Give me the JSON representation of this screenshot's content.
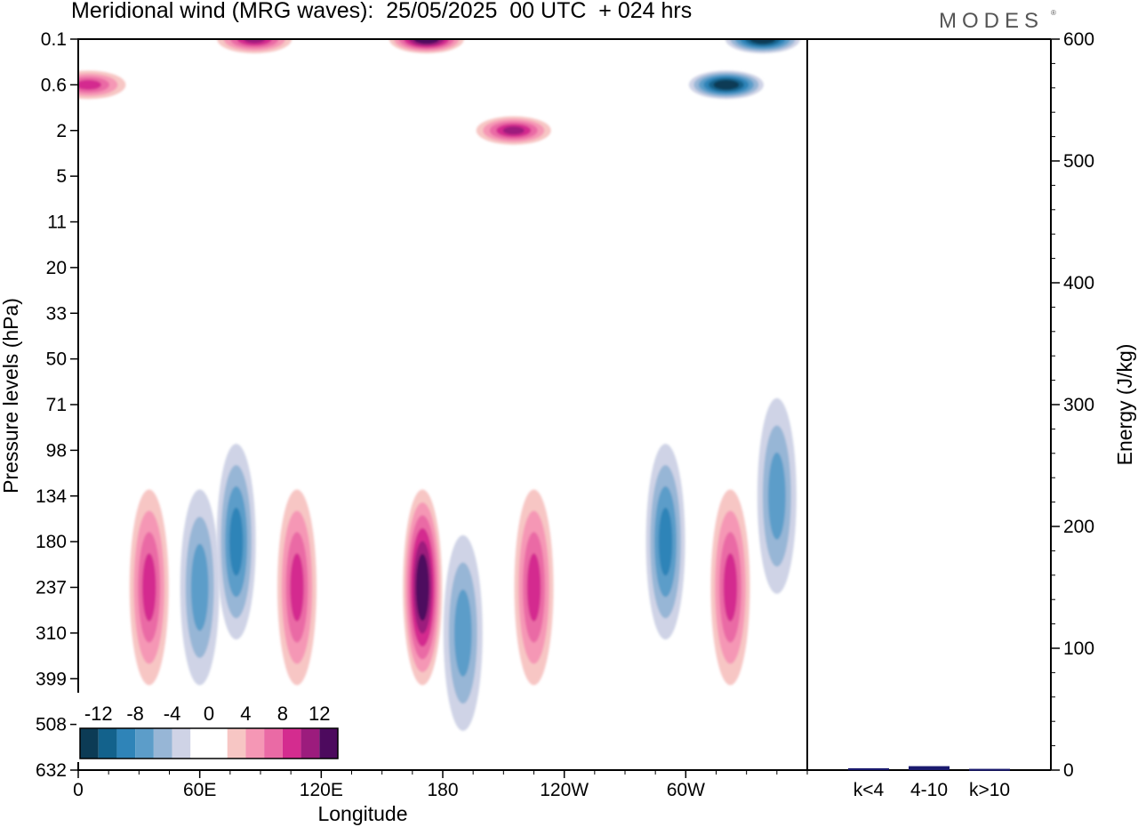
{
  "header": {
    "title": "Meridional wind (MRG waves):  25/05/2025  00 UTC  + 024 hrs",
    "brand": "MODES",
    "brand_mark": "®"
  },
  "chart_data": [
    {
      "type": "heatmap",
      "title": "Meridional wind (MRG waves):  25/05/2025  00 UTC  + 024 hrs",
      "xlabel": "Longitude",
      "ylabel": "Pressure levels (hPa)",
      "x_ticks": [
        "0",
        "60E",
        "120E",
        "180",
        "120W",
        "60W"
      ],
      "x_tick_values": [
        0,
        60,
        120,
        180,
        240,
        300
      ],
      "xlim": [
        0,
        360
      ],
      "y_ticks": [
        "0.1",
        "0.6",
        "2",
        "5",
        "11",
        "20",
        "33",
        "50",
        "71",
        "98",
        "134",
        "180",
        "237",
        "310",
        "399",
        "508",
        "632"
      ],
      "colorbar": {
        "labels": [
          "-12",
          "-8",
          "-4",
          "0",
          "4",
          "8",
          "12"
        ],
        "levels": [
          -14,
          -12,
          -10,
          -8,
          -6,
          -4,
          -2,
          0,
          2,
          4,
          6,
          8,
          10,
          12,
          14
        ],
        "colors": [
          "#0c3b55",
          "#13628c",
          "#2f84b8",
          "#5c9dc9",
          "#97b6d6",
          "#cfd3e6",
          "#ffffff",
          "#ffffff",
          "#f7c6c4",
          "#f597b5",
          "#ea6aa5",
          "#d42c8f",
          "#9c1c7d",
          "#4d0a5e"
        ]
      },
      "features": [
        {
          "lon": 5,
          "level": "0.6",
          "value": 8
        },
        {
          "lon": 35,
          "level": "237",
          "value": 8
        },
        {
          "lon": 60,
          "level": "237",
          "value": -6
        },
        {
          "lon": 78,
          "level": "180",
          "value": -8
        },
        {
          "lon": 108,
          "level": "237",
          "value": 8
        },
        {
          "lon": 170,
          "level": "237",
          "value": 14
        },
        {
          "lon": 190,
          "level": "310",
          "value": -6
        },
        {
          "lon": 225,
          "level": "237",
          "value": 8
        },
        {
          "lon": 290,
          "level": "180",
          "value": -8
        },
        {
          "lon": 322,
          "level": "237",
          "value": 8
        },
        {
          "lon": 345,
          "level": "134",
          "value": -6
        },
        {
          "lon": 87,
          "level": "0.1",
          "value": 10
        },
        {
          "lon": 172,
          "level": "0.1",
          "value": 14
        },
        {
          "lon": 215,
          "level": "2",
          "value": 10
        },
        {
          "lon": 320,
          "level": "0.6",
          "value": -14
        },
        {
          "lon": 338,
          "level": "0.1",
          "value": -14
        }
      ]
    },
    {
      "type": "bar",
      "categories": [
        "k<4",
        "4-10",
        "k>10"
      ],
      "values": [
        0.8,
        2.5,
        0.3
      ],
      "ylabel": "Energy (J/kg)",
      "ylim": [
        0,
        600
      ],
      "y_ticks": [
        "0",
        "100",
        "200",
        "300",
        "400",
        "500",
        "600"
      ],
      "y_tick_values": [
        0,
        100,
        200,
        300,
        400,
        500,
        600
      ],
      "bar_color": "#1a1a6e"
    }
  ]
}
